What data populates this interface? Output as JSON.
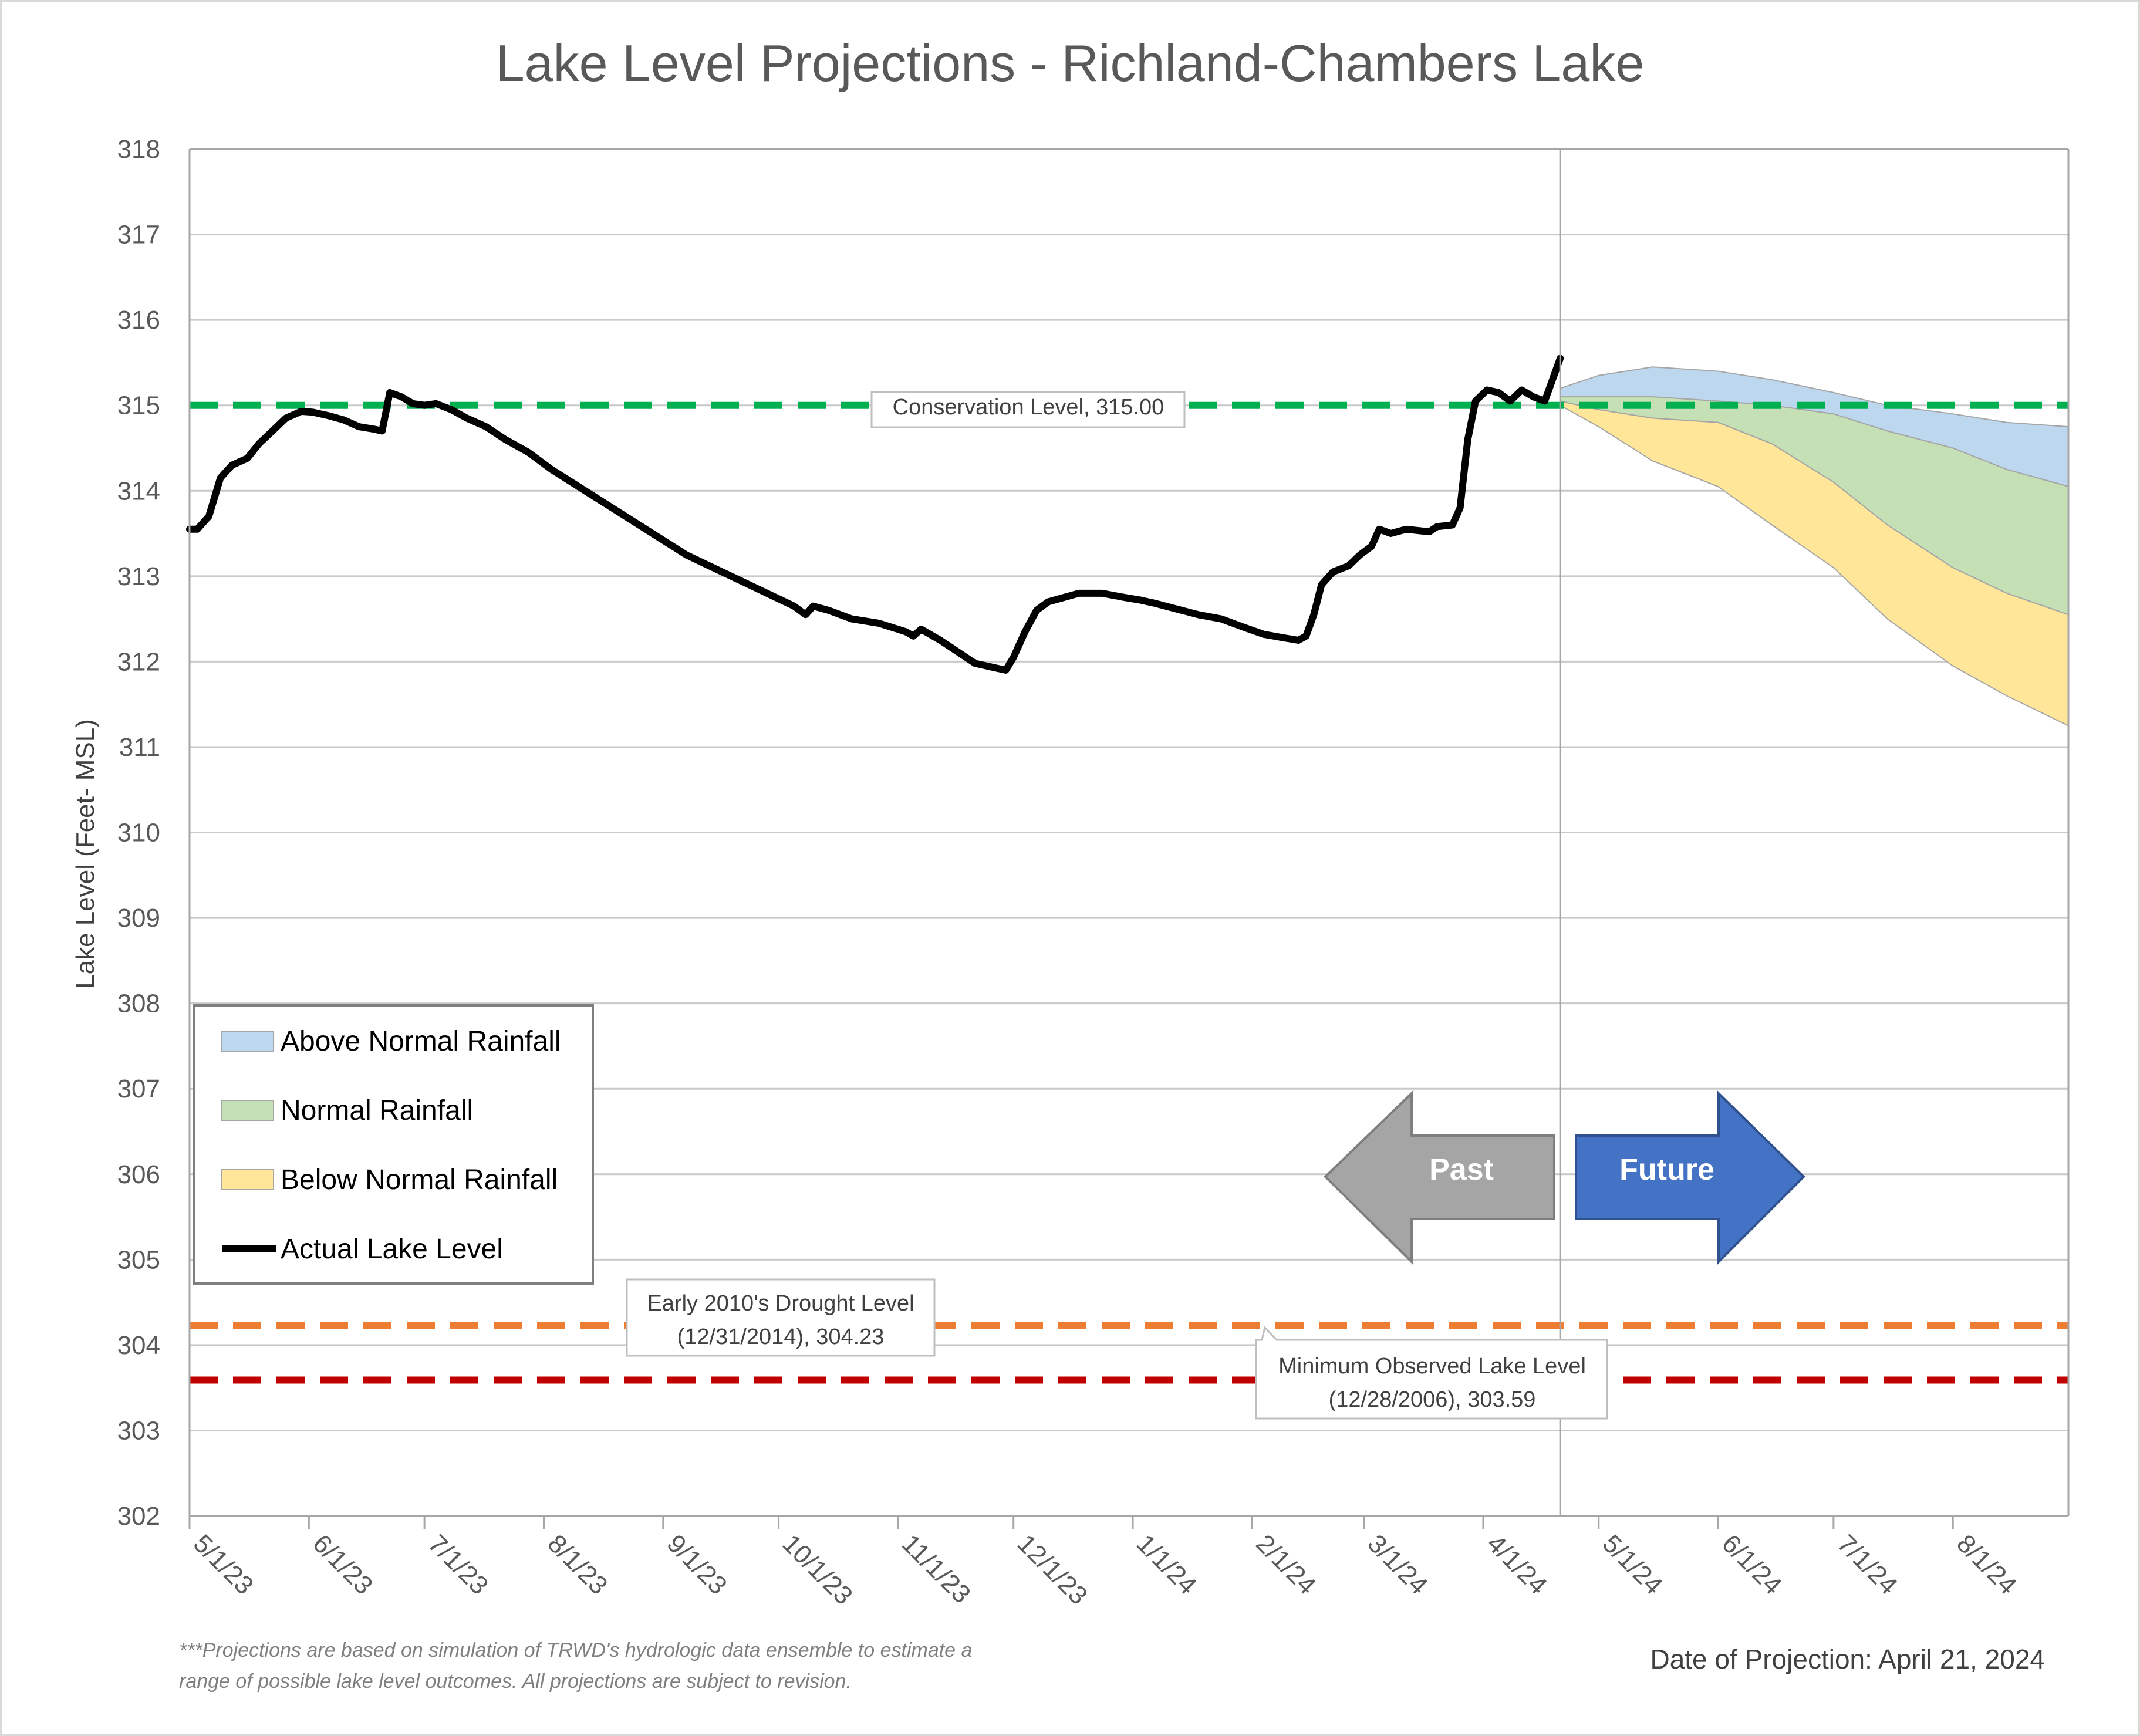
{
  "chart_data": {
    "type": "area",
    "title": "Lake Level Projections - Richland-Chambers Lake",
    "ylabel": "Lake Level (Feet- MSL)",
    "xlabel": "",
    "ylim": [
      302,
      318
    ],
    "yticks": [
      "302",
      "303",
      "304",
      "305",
      "306",
      "307",
      "308",
      "309",
      "310",
      "311",
      "312",
      "313",
      "314",
      "315",
      "316",
      "317",
      "318"
    ],
    "xtick_labels": [
      "5/1/23",
      "6/1/23",
      "7/1/23",
      "8/1/23",
      "9/1/23",
      "10/1/23",
      "11/1/23",
      "12/1/23",
      "1/1/24",
      "2/1/24",
      "3/1/24",
      "4/1/24",
      "5/1/24",
      "6/1/24",
      "7/1/24",
      "8/1/24"
    ],
    "xlim": [
      "2023-05-01",
      "2024-08-31"
    ],
    "grid": "horizontal",
    "projection_start": "2024-04-21",
    "legend": {
      "placement": "lower-left",
      "items": [
        {
          "label": "Above Normal Rainfall",
          "color": "#bdd7ee"
        },
        {
          "label": "Normal Rainfall",
          "color": "#c5e0b4"
        },
        {
          "label": "Below Normal Rainfall",
          "color": "#ffe699"
        },
        {
          "label": "Actual Lake Level",
          "color": "#000000"
        }
      ]
    },
    "reference_lines": [
      {
        "label": "Conservation Level, 315.00",
        "value": 315.0,
        "color": "#00b050"
      },
      {
        "label_line1": "Early 2010's Drought Level",
        "label_line2": "(12/31/2014), 304.23",
        "value": 304.23,
        "color": "#ed7d31"
      },
      {
        "label_line1": "Minimum Observed Lake Level",
        "label_line2": "(12/28/2006), 303.59",
        "value": 303.59,
        "color": "#c00000"
      }
    ],
    "actual_lake_level": {
      "color": "#000000",
      "points": [
        [
          "2023-05-01",
          313.55
        ],
        [
          "2023-05-03",
          313.55
        ],
        [
          "2023-05-06",
          313.7
        ],
        [
          "2023-05-09",
          314.15
        ],
        [
          "2023-05-12",
          314.3
        ],
        [
          "2023-05-16",
          314.38
        ],
        [
          "2023-05-19",
          314.55
        ],
        [
          "2023-05-23",
          314.72
        ],
        [
          "2023-05-26",
          314.85
        ],
        [
          "2023-05-30",
          314.93
        ],
        [
          "2023-06-02",
          314.92
        ],
        [
          "2023-06-06",
          314.88
        ],
        [
          "2023-06-10",
          314.83
        ],
        [
          "2023-06-14",
          314.75
        ],
        [
          "2023-06-18",
          314.72
        ],
        [
          "2023-06-20",
          314.7
        ],
        [
          "2023-06-22",
          315.15
        ],
        [
          "2023-06-25",
          315.1
        ],
        [
          "2023-06-28",
          315.02
        ],
        [
          "2023-07-01",
          315.0
        ],
        [
          "2023-07-04",
          315.02
        ],
        [
          "2023-07-08",
          314.95
        ],
        [
          "2023-07-12",
          314.85
        ],
        [
          "2023-07-17",
          314.75
        ],
        [
          "2023-07-22",
          314.6
        ],
        [
          "2023-07-28",
          314.45
        ],
        [
          "2023-08-03",
          314.25
        ],
        [
          "2023-08-10",
          314.05
        ],
        [
          "2023-08-17",
          313.85
        ],
        [
          "2023-08-24",
          313.65
        ],
        [
          "2023-08-31",
          313.45
        ],
        [
          "2023-09-07",
          313.25
        ],
        [
          "2023-09-14",
          313.1
        ],
        [
          "2023-09-21",
          312.95
        ],
        [
          "2023-09-28",
          312.8
        ],
        [
          "2023-10-05",
          312.65
        ],
        [
          "2023-10-08",
          312.55
        ],
        [
          "2023-10-10",
          312.65
        ],
        [
          "2023-10-14",
          312.6
        ],
        [
          "2023-10-20",
          312.5
        ],
        [
          "2023-10-27",
          312.45
        ],
        [
          "2023-11-03",
          312.35
        ],
        [
          "2023-11-05",
          312.3
        ],
        [
          "2023-11-07",
          312.38
        ],
        [
          "2023-11-12",
          312.25
        ],
        [
          "2023-11-17",
          312.1
        ],
        [
          "2023-11-21",
          311.98
        ],
        [
          "2023-11-26",
          311.93
        ],
        [
          "2023-11-29",
          311.9
        ],
        [
          "2023-12-01",
          312.05
        ],
        [
          "2023-12-04",
          312.35
        ],
        [
          "2023-12-07",
          312.6
        ],
        [
          "2023-12-10",
          312.7
        ],
        [
          "2023-12-14",
          312.75
        ],
        [
          "2023-12-18",
          312.8
        ],
        [
          "2023-12-24",
          312.8
        ],
        [
          "2023-12-30",
          312.75
        ],
        [
          "2024-01-03",
          312.72
        ],
        [
          "2024-01-07",
          312.68
        ],
        [
          "2024-01-12",
          312.62
        ],
        [
          "2024-01-18",
          312.55
        ],
        [
          "2024-01-24",
          312.5
        ],
        [
          "2024-01-30",
          312.4
        ],
        [
          "2024-02-04",
          312.32
        ],
        [
          "2024-02-09",
          312.28
        ],
        [
          "2024-02-13",
          312.25
        ],
        [
          "2024-02-15",
          312.3
        ],
        [
          "2024-02-17",
          312.55
        ],
        [
          "2024-02-19",
          312.9
        ],
        [
          "2024-02-22",
          313.05
        ],
        [
          "2024-02-26",
          313.12
        ],
        [
          "2024-02-29",
          313.25
        ],
        [
          "2024-03-03",
          313.35
        ],
        [
          "2024-03-05",
          313.55
        ],
        [
          "2024-03-08",
          313.5
        ],
        [
          "2024-03-12",
          313.55
        ],
        [
          "2024-03-18",
          313.52
        ],
        [
          "2024-03-20",
          313.58
        ],
        [
          "2024-03-24",
          313.6
        ],
        [
          "2024-03-26",
          313.8
        ],
        [
          "2024-03-28",
          314.6
        ],
        [
          "2024-03-30",
          315.05
        ],
        [
          "2024-04-02",
          315.18
        ],
        [
          "2024-04-05",
          315.15
        ],
        [
          "2024-04-08",
          315.05
        ],
        [
          "2024-04-11",
          315.18
        ],
        [
          "2024-04-14",
          315.1
        ],
        [
          "2024-04-17",
          315.05
        ],
        [
          "2024-04-19",
          315.3
        ],
        [
          "2024-04-21",
          315.55
        ]
      ]
    },
    "notes": {
      "footnote_line1": "***Projections are based on simulation of TRWD's hydrologic data ensemble to estimate a",
      "footnote_line2": "range of possible lake level outcomes.  All projections are subject to revision.",
      "projection_date": "Date of Projection: April 21, 2024"
    },
    "arrows": {
      "past": "Past",
      "future": "Future"
    }
  }
}
